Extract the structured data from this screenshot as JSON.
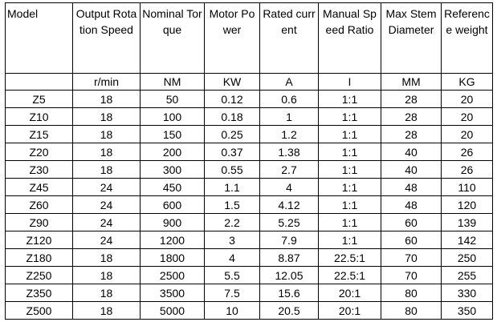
{
  "table": {
    "headers": [
      "Model",
      "Output Rotation Speed",
      "Nominal Torque",
      "Motor Power",
      "Rated current",
      "Manual Speed Ratio",
      "Max Stem Diameter",
      "Reference weight"
    ],
    "units": [
      "",
      "r/min",
      "NM",
      "KW",
      "A",
      "I",
      "MM",
      "KG"
    ],
    "rows": [
      [
        "Z5",
        "18",
        "50",
        "0.12",
        "0.6",
        "1:1",
        "28",
        "20"
      ],
      [
        "Z10",
        "18",
        "100",
        "0.18",
        "1",
        "1:1",
        "28",
        "20"
      ],
      [
        "Z15",
        "18",
        "150",
        "0.25",
        "1.2",
        "1:1",
        "28",
        "20"
      ],
      [
        "Z20",
        "18",
        "200",
        "0.37",
        "1.38",
        "1:1",
        "40",
        "26"
      ],
      [
        "Z30",
        "18",
        "300",
        "0.55",
        "2.7",
        "1:1",
        "40",
        "26"
      ],
      [
        "Z45",
        "24",
        "450",
        "1.1",
        "4",
        "1:1",
        "48",
        "110"
      ],
      [
        "Z60",
        "24",
        "600",
        "1.5",
        "4.12",
        "1:1",
        "48",
        "120"
      ],
      [
        "Z90",
        "24",
        "900",
        "2.2",
        "5.25",
        "1:1",
        "60",
        "139"
      ],
      [
        "Z120",
        "24",
        "1200",
        "3",
        "7.9",
        "1:1",
        "60",
        "142"
      ],
      [
        "Z180",
        "18",
        "1800",
        "4",
        "8.87",
        "22.5:1",
        "70",
        "250"
      ],
      [
        "Z250",
        "18",
        "2500",
        "5.5",
        "12.05",
        "22.5:1",
        "70",
        "255"
      ],
      [
        "Z350",
        "18",
        "3500",
        "7.5",
        "15.6",
        "20:1",
        "80",
        "330"
      ],
      [
        "Z500",
        "18",
        "5000",
        "10",
        "20.5",
        "20:1",
        "80",
        "350"
      ]
    ]
  }
}
